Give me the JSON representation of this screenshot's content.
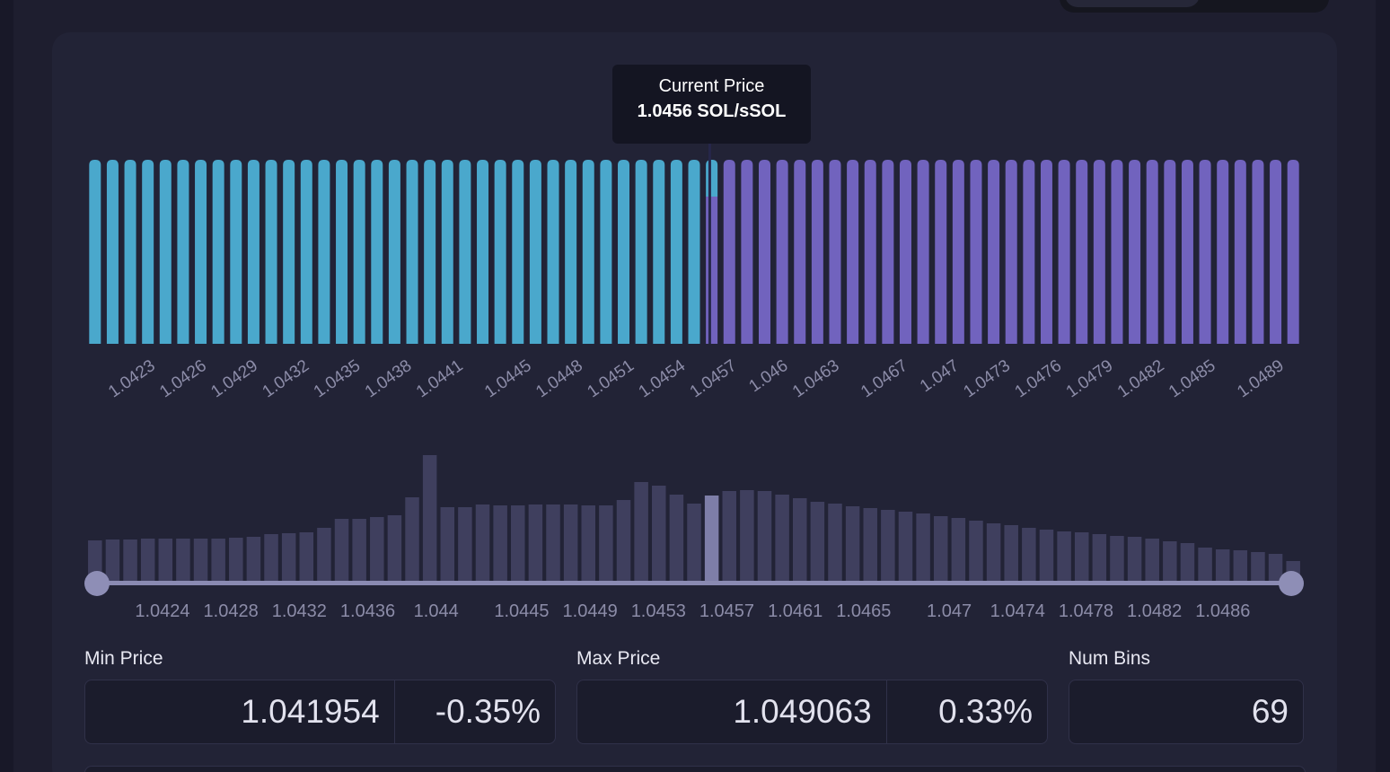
{
  "chart_data": [
    {
      "type": "bar",
      "series": [
        {
          "color": "#7163be",
          "values": [
            null,
            null,
            null,
            null,
            null,
            null,
            null,
            null,
            null,
            null,
            null,
            null,
            null,
            null,
            null,
            null,
            null,
            null,
            null,
            null,
            null,
            null,
            null,
            null,
            null,
            null,
            null,
            null,
            null,
            null,
            null,
            null,
            null,
            null,
            null,
            80,
            100,
            100,
            100,
            100,
            100,
            100,
            100,
            100,
            100,
            100,
            100,
            100,
            100,
            100,
            100,
            100,
            100,
            100,
            100,
            100,
            100,
            100,
            100,
            100,
            100,
            100,
            100,
            100,
            100,
            100,
            100,
            100,
            100
          ]
        },
        {
          "color": "#4aa8cc",
          "values": [
            100,
            100,
            100,
            100,
            100,
            100,
            100,
            100,
            100,
            100,
            100,
            100,
            100,
            100,
            100,
            100,
            100,
            100,
            100,
            100,
            100,
            100,
            100,
            100,
            100,
            100,
            100,
            100,
            100,
            100,
            100,
            100,
            100,
            100,
            100,
            20,
            null,
            null,
            null,
            null,
            null,
            null,
            null,
            null,
            null,
            null,
            null,
            null,
            null,
            null,
            null,
            null,
            null,
            null,
            null,
            null,
            null,
            null,
            null,
            null,
            null,
            null,
            null,
            null,
            null,
            null,
            null,
            null,
            null
          ]
        }
      ],
      "ylim": [
        0,
        100
      ],
      "xlim": [
        1.041954,
        1.049063
      ],
      "xticks": [
        1.0423,
        1.0426,
        1.0429,
        1.0432,
        1.0435,
        1.0438,
        1.0441,
        1.0445,
        1.0448,
        1.0451,
        1.0454,
        1.0457,
        1.046,
        1.0463,
        1.0467,
        1.047,
        1.0473,
        1.0476,
        1.0479,
        1.0482,
        1.0485,
        1.0489
      ],
      "current_price": {
        "value": 1.0456,
        "title": "Current Price",
        "label": "1.0456 SOL/sSOL"
      }
    },
    {
      "type": "bar",
      "color": "#3f3f5e",
      "highlight_color": "#7e7ea8",
      "values": [
        45,
        46,
        46,
        47,
        47,
        47,
        47,
        47,
        48,
        49,
        52,
        53,
        54,
        59,
        69,
        69,
        71,
        73,
        93,
        140,
        82,
        82,
        85,
        84,
        84,
        85,
        85,
        85,
        84,
        84,
        90,
        110,
        106,
        96,
        86,
        95,
        100,
        101,
        100,
        96,
        92,
        88,
        86,
        83,
        81,
        79,
        77,
        75,
        72,
        70,
        67,
        64,
        62,
        59,
        57,
        55,
        54,
        52,
        50,
        49,
        47,
        44,
        42,
        37,
        35,
        34,
        32,
        30,
        22
      ],
      "ylim": [
        0,
        150
      ],
      "xlim": [
        1.041954,
        1.049063
      ],
      "xticks": [
        1.0424,
        1.0428,
        1.0432,
        1.0436,
        1.044,
        1.0445,
        1.0449,
        1.0453,
        1.0457,
        1.0461,
        1.0465,
        1.047,
        1.0474,
        1.0478,
        1.0482,
        1.0486
      ]
    }
  ],
  "inputs": {
    "min_price": {
      "label": "Min Price",
      "value": "1.041954",
      "percent": "-0.35%"
    },
    "max_price": {
      "label": "Max Price",
      "value": "1.049063",
      "percent": "0.33%"
    },
    "num_bins": {
      "label": "Num Bins",
      "value": "69"
    }
  }
}
